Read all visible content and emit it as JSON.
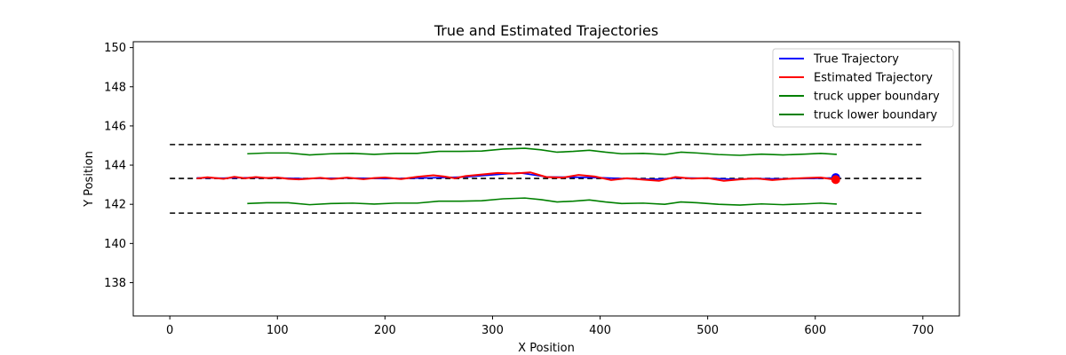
{
  "chart_data": {
    "type": "line",
    "title": "True and Estimated Trajectories",
    "xlabel": "X Position",
    "ylabel": "Y Position",
    "xlim": [
      -34,
      734
    ],
    "ylim": [
      136.3,
      150.3
    ],
    "xticks": [
      0,
      100,
      200,
      300,
      400,
      500,
      600,
      700
    ],
    "xtick_labels": [
      "0",
      "100",
      "200",
      "300",
      "400",
      "500",
      "600",
      "700"
    ],
    "yticks": [
      138,
      140,
      142,
      144,
      146,
      148,
      150
    ],
    "ytick_labels": [
      "138",
      "140",
      "142",
      "144",
      "146",
      "148",
      "150"
    ],
    "grid": false,
    "legend_position": "top-right",
    "colors": {
      "true_trajectory": "#0000ff",
      "estimated_trajectory": "#ff0000",
      "truck_boundary": "#008000",
      "lane_line": "#000000"
    },
    "series": [
      {
        "name": "True Trajectory",
        "color": "#0000ff",
        "x": [
          25,
          50,
          75,
          100,
          125,
          150,
          175,
          200,
          225,
          250,
          275,
          300,
          325,
          350,
          375,
          400,
          425,
          450,
          475,
          500,
          525,
          550,
          575,
          600,
          620
        ],
        "y": [
          143.35,
          143.34,
          143.36,
          143.35,
          143.31,
          143.33,
          143.34,
          143.31,
          143.33,
          143.36,
          143.4,
          143.5,
          143.61,
          143.4,
          143.38,
          143.36,
          143.31,
          143.28,
          143.35,
          143.33,
          143.28,
          143.31,
          143.3,
          143.32,
          143.36
        ]
      },
      {
        "name": "Estimated Trajectory",
        "color": "#ff0000",
        "x": [
          25,
          35,
          50,
          60,
          70,
          80,
          90,
          100,
          110,
          120,
          130,
          140,
          150,
          165,
          180,
          190,
          200,
          215,
          230,
          245,
          255,
          265,
          275,
          290,
          305,
          320,
          335,
          350,
          365,
          380,
          395,
          410,
          425,
          440,
          455,
          470,
          485,
          500,
          515,
          530,
          545,
          560,
          575,
          590,
          605,
          620
        ],
        "y": [
          143.32,
          143.38,
          143.3,
          143.4,
          143.33,
          143.39,
          143.34,
          143.37,
          143.3,
          143.27,
          143.31,
          143.35,
          143.29,
          143.36,
          143.28,
          143.34,
          143.37,
          143.29,
          143.4,
          143.48,
          143.42,
          143.33,
          143.44,
          143.52,
          143.6,
          143.57,
          143.63,
          143.39,
          143.36,
          143.5,
          143.42,
          143.24,
          143.33,
          143.26,
          143.2,
          143.39,
          143.31,
          143.34,
          143.2,
          143.27,
          143.32,
          143.24,
          143.3,
          143.34,
          143.37,
          143.25
        ]
      },
      {
        "name": "truck upper boundary",
        "color": "#008000",
        "x": [
          72,
          90,
          110,
          130,
          150,
          170,
          190,
          210,
          230,
          250,
          270,
          290,
          310,
          330,
          345,
          360,
          375,
          390,
          405,
          420,
          440,
          460,
          475,
          490,
          510,
          530,
          550,
          570,
          590,
          605,
          620
        ],
        "y": [
          144.58,
          144.62,
          144.62,
          144.52,
          144.58,
          144.6,
          144.55,
          144.6,
          144.6,
          144.7,
          144.7,
          144.72,
          144.82,
          144.86,
          144.78,
          144.66,
          144.7,
          144.76,
          144.66,
          144.58,
          144.6,
          144.54,
          144.66,
          144.62,
          144.54,
          144.5,
          144.56,
          144.52,
          144.56,
          144.6,
          144.55
        ]
      },
      {
        "name": "truck lower boundary",
        "color": "#008000",
        "x": [
          72,
          90,
          110,
          130,
          150,
          170,
          190,
          210,
          230,
          250,
          270,
          290,
          310,
          330,
          345,
          360,
          375,
          390,
          405,
          420,
          440,
          460,
          475,
          490,
          510,
          530,
          550,
          570,
          590,
          605,
          620
        ],
        "y": [
          142.04,
          142.08,
          142.08,
          141.98,
          142.04,
          142.06,
          142.01,
          142.06,
          142.06,
          142.16,
          142.16,
          142.18,
          142.28,
          142.32,
          142.24,
          142.12,
          142.16,
          142.22,
          142.12,
          142.04,
          142.06,
          142.0,
          142.12,
          142.08,
          142.0,
          141.96,
          142.02,
          141.98,
          142.02,
          142.06,
          142.01
        ]
      }
    ],
    "reference_lines": [
      {
        "y": 145.05,
        "x_start": 0,
        "x_end": 700,
        "color": "#000000",
        "style": "dashed"
      },
      {
        "y": 143.32,
        "x_start": 0,
        "x_end": 700,
        "color": "#000000",
        "style": "dashed"
      },
      {
        "y": 141.55,
        "x_start": 0,
        "x_end": 700,
        "color": "#000000",
        "style": "dashed"
      }
    ],
    "markers": [
      {
        "x": 619,
        "y": 143.36,
        "color": "#0000ff"
      },
      {
        "x": 619,
        "y": 143.26,
        "color": "#ff0000"
      }
    ],
    "legend": [
      {
        "label": "True Trajectory",
        "color": "#0000ff"
      },
      {
        "label": "Estimated Trajectory",
        "color": "#ff0000"
      },
      {
        "label": "truck upper boundary",
        "color": "#008000"
      },
      {
        "label": "truck lower boundary",
        "color": "#008000"
      }
    ]
  }
}
